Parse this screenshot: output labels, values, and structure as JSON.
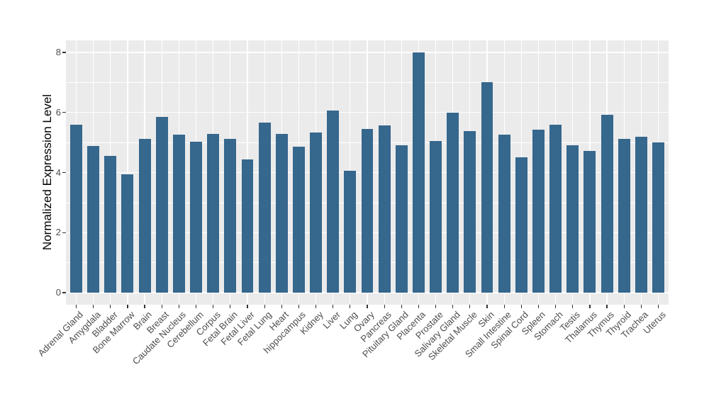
{
  "figure": {
    "background_color": "#ffffff",
    "panel_background_color": "#ebebeb",
    "grid_color": "#ffffff",
    "bar_color": "#36678d",
    "axis_text_color": "#4d4d4d",
    "axis_title_color": "#000000"
  },
  "chart_data": {
    "type": "bar",
    "title": "",
    "xlabel": "",
    "ylabel": "Normalized Expression Level",
    "categories": [
      "Adrenal Gland",
      "Amygdala",
      "Bladder",
      "Bone Marrow",
      "Brain",
      "Breast",
      "Caudate Nucleus",
      "Cerebellum",
      "Corpus",
      "Fetal Brain",
      "Fetal Liver",
      "Fetal Lung",
      "Heart",
      "hippocampus",
      "Kidney",
      "Liver",
      "Lung",
      "Ovary",
      "Pancreas",
      "Pituitary Gland",
      "Placenta",
      "Prostate",
      "Salivary Gland",
      "Skeletal Muscle",
      "Skin",
      "Small Intestine",
      "Spinal Cord",
      "Spleen",
      "Stomach",
      "Testis",
      "Thalamus",
      "Thymus",
      "Thyroid",
      "Trachea",
      "Uterus"
    ],
    "values": [
      5.6,
      4.89,
      4.55,
      3.95,
      5.12,
      5.85,
      5.26,
      5.03,
      5.28,
      5.12,
      4.44,
      5.66,
      5.29,
      4.87,
      5.33,
      6.07,
      4.07,
      5.44,
      5.57,
      4.91,
      8.0,
      5.05,
      6.0,
      5.38,
      7.0,
      5.27,
      4.51,
      5.43,
      5.59,
      4.91,
      4.71,
      5.92,
      5.11,
      5.2,
      5.01
    ],
    "yticks": [
      0,
      2,
      4,
      6,
      8
    ],
    "ylim": [
      0,
      8
    ],
    "grid": true,
    "legend_position": "none",
    "bar_width_fraction": 0.7
  }
}
